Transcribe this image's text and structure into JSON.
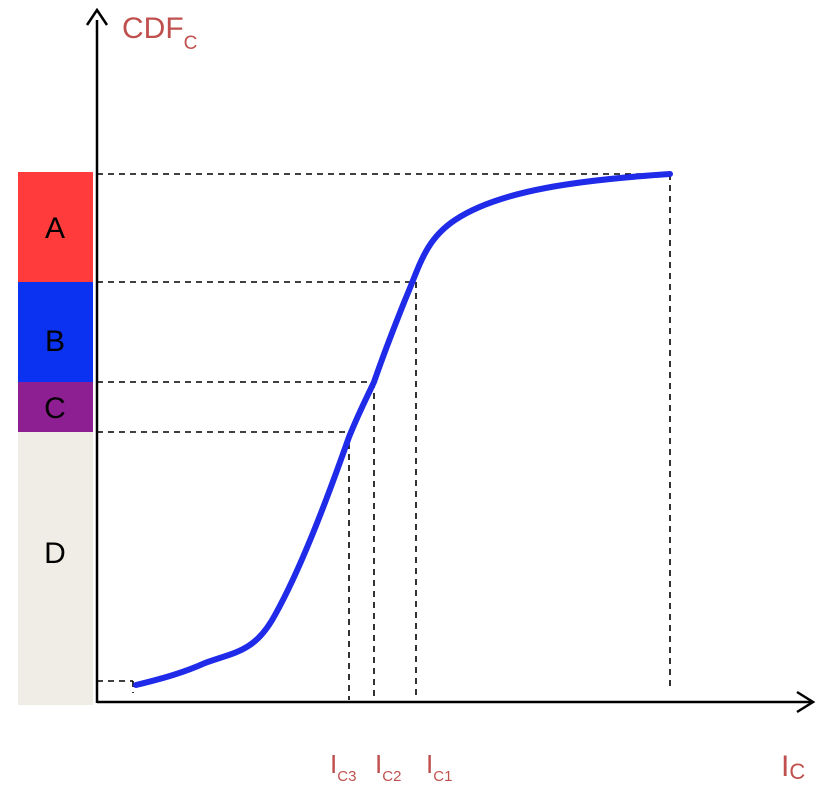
{
  "colors": {
    "axis": "#000000",
    "curve": "#1f2be8",
    "label": "#c0504d",
    "band_a": "#ff3b3b",
    "band_b": "#0a32f0",
    "band_c": "#8e1f93",
    "band_d": "#efede5"
  },
  "axes": {
    "y_label_main": "CDF",
    "y_label_sub": "C",
    "x_label_main": "I",
    "x_label_sub": "C"
  },
  "bands": [
    {
      "id": "a",
      "label": "A",
      "color": "#ff3b3b"
    },
    {
      "id": "b",
      "label": "B",
      "color": "#0a32f0"
    },
    {
      "id": "c",
      "label": "C",
      "color": "#8e1f93"
    },
    {
      "id": "d",
      "label": "D",
      "color": "#efede5"
    }
  ],
  "thresholds": [
    {
      "id": "c3",
      "main": "I",
      "sub": "C3"
    },
    {
      "id": "c2",
      "main": "I",
      "sub": "C2"
    },
    {
      "id": "c1",
      "main": "I",
      "sub": "C1"
    }
  ]
}
